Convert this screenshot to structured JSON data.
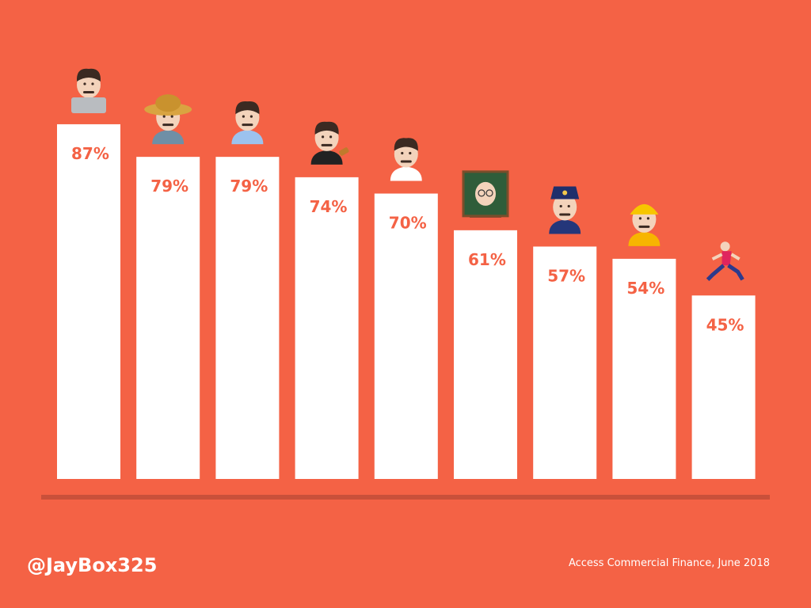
{
  "colors": {
    "background": "#f46245",
    "bar": "#ffffff",
    "label": "#f46245",
    "baseline": "#c9503a",
    "skin": "#f3d3bb",
    "hair": "#3b2a22"
  },
  "footer": {
    "handle": "@JayBox325",
    "source": "Access Commercial Finance, June 2018"
  },
  "chart_data": {
    "type": "bar",
    "title": "",
    "xlabel": "",
    "ylabel": "",
    "ylim": [
      0,
      100
    ],
    "grid": false,
    "categories": [
      "",
      "",
      "",
      "",
      "",
      "",
      "",
      "",
      ""
    ],
    "icons": [
      "man-technologist-icon",
      "man-farmer-icon",
      "man-office-worker-icon",
      "man-judge-icon",
      "man-health-worker-icon",
      "man-teacher-icon",
      "man-police-officer-icon",
      "man-construction-worker-icon",
      "person-running-icon"
    ],
    "values": [
      87,
      79,
      79,
      74,
      70,
      61,
      57,
      54,
      45
    ],
    "data_labels": [
      "87%",
      "79%",
      "79%",
      "74%",
      "70%",
      "61%",
      "57%",
      "54%",
      "45%"
    ]
  }
}
